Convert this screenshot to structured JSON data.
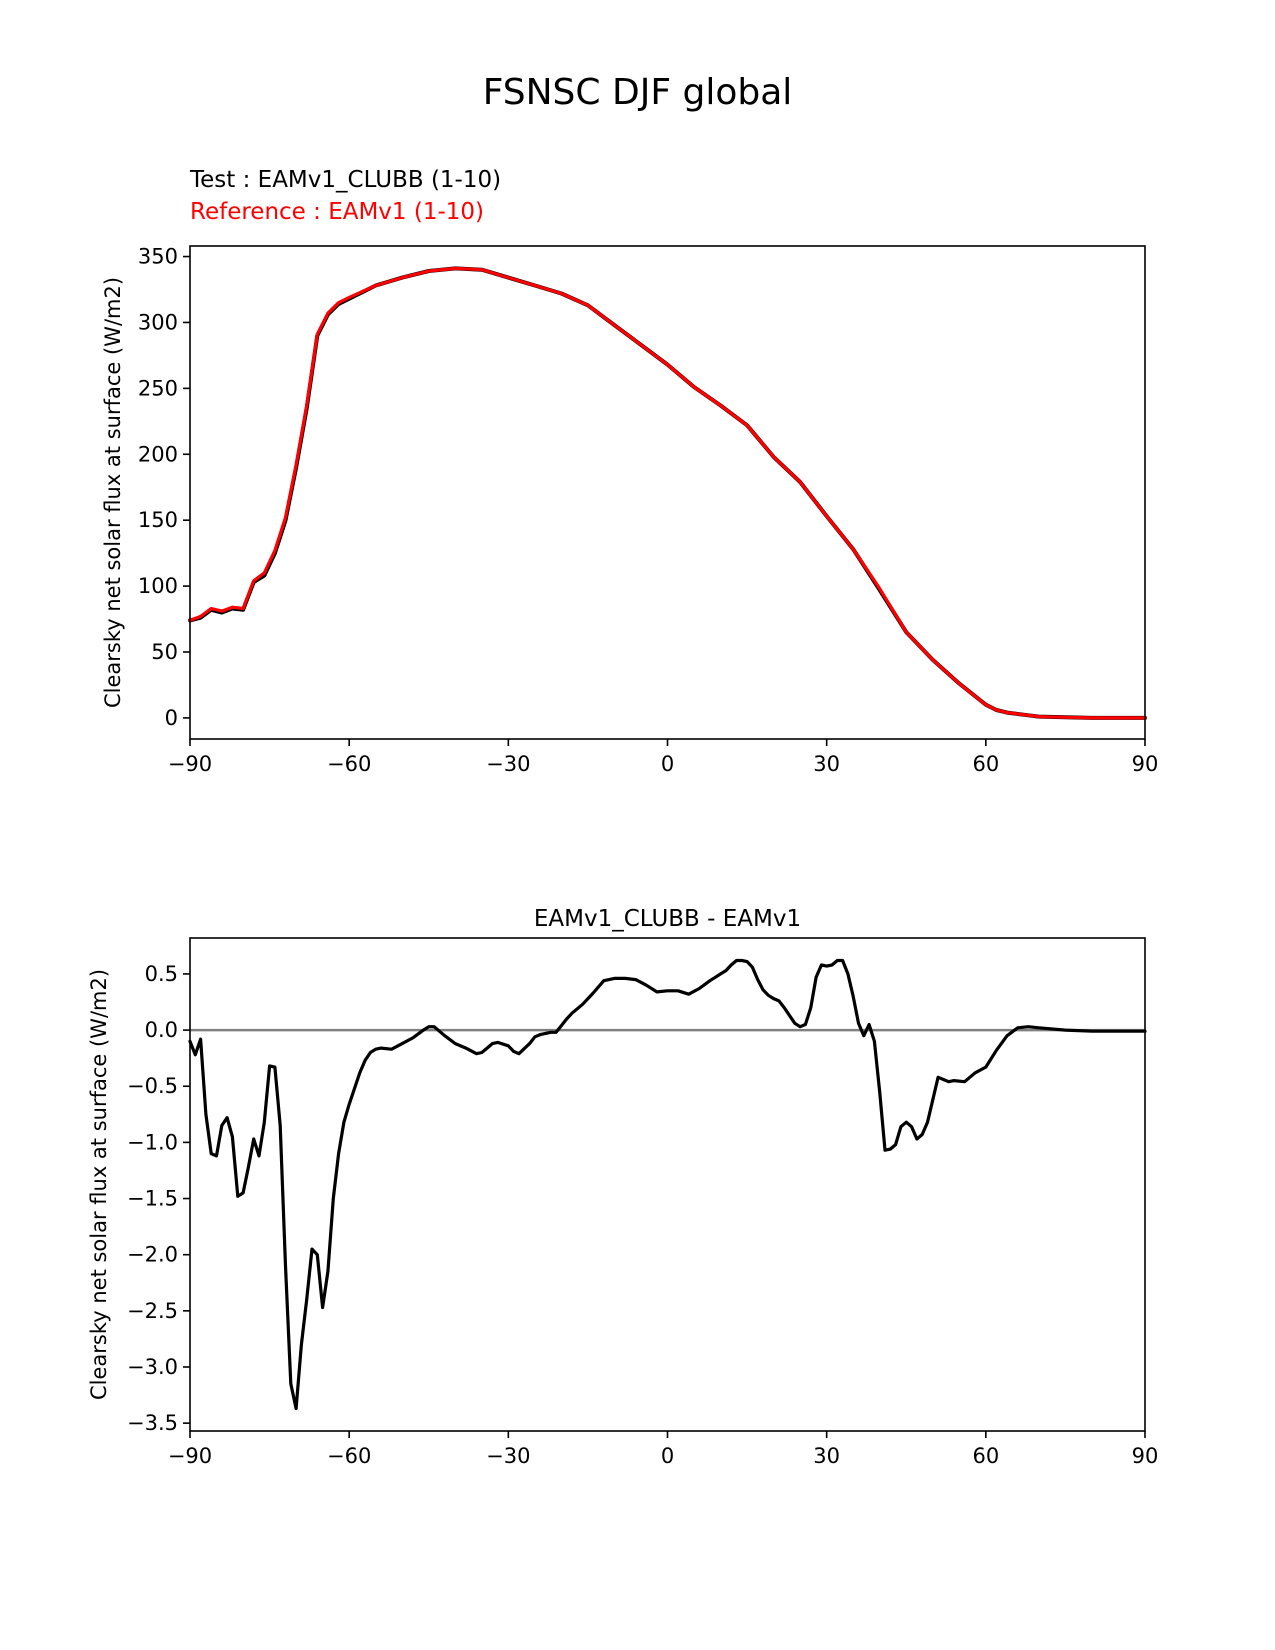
{
  "page": {
    "title": "FSNSC DJF global"
  },
  "chart_data": [
    {
      "type": "line",
      "title_test": "Test : EAMv1_CLUBB (1-10)",
      "title_reference": "Reference : EAMv1 (1-10)",
      "xlabel": "",
      "ylabel": "Clearsky net solar flux at surface (W/m2)",
      "xlim": [
        -90,
        90
      ],
      "ylim": [
        -16,
        358
      ],
      "xticks": [
        -90,
        -60,
        -30,
        0,
        30,
        60,
        90
      ],
      "xtick_labels": [
        "−90",
        "−60",
        "−30",
        "0",
        "30",
        "60",
        "90"
      ],
      "yticks": [
        0,
        50,
        100,
        150,
        200,
        250,
        300,
        350
      ],
      "ytick_labels": [
        "0",
        "50",
        "100",
        "150",
        "200",
        "250",
        "300",
        "350"
      ],
      "series": [
        {
          "name": "Test : EAMv1_CLUBB (1-10)",
          "color": "#000000",
          "x": [
            -90,
            -88,
            -86,
            -84,
            -82,
            -80,
            -78,
            -76,
            -74,
            -72,
            -70,
            -68,
            -66,
            -64,
            -62,
            -60,
            -55,
            -50,
            -45,
            -40,
            -35,
            -30,
            -25,
            -20,
            -15,
            -10,
            -5,
            0,
            5,
            10,
            15,
            20,
            25,
            30,
            35,
            40,
            45,
            50,
            55,
            60,
            62,
            64,
            66,
            68,
            70,
            75,
            80,
            85,
            90
          ],
          "y": [
            74,
            76,
            82,
            80,
            83,
            82,
            103,
            108,
            125,
            150,
            190,
            235,
            290,
            306,
            314,
            318,
            328,
            334,
            339,
            341,
            340,
            334,
            328,
            322,
            313,
            298,
            283,
            268,
            251,
            237,
            222,
            198,
            179,
            153,
            128,
            97,
            65,
            44,
            26,
            10,
            6,
            4,
            3,
            2,
            1,
            0.5,
            0,
            0,
            0
          ]
        },
        {
          "name": "Reference : EAMv1 (1-10)",
          "color": "#ff0000",
          "x": [
            -90,
            -88,
            -86,
            -84,
            -82,
            -80,
            -78,
            -76,
            -74,
            -72,
            -70,
            -68,
            -66,
            -64,
            -62,
            -60,
            -55,
            -50,
            -45,
            -40,
            -35,
            -30,
            -25,
            -20,
            -15,
            -10,
            -5,
            0,
            5,
            10,
            15,
            20,
            25,
            30,
            35,
            40,
            45,
            50,
            55,
            60,
            62,
            64,
            66,
            68,
            70,
            75,
            80,
            85,
            90
          ],
          "y": [
            74,
            77,
            83,
            81,
            84,
            83,
            104,
            110,
            127,
            152,
            192,
            237,
            291,
            307,
            315,
            319,
            328,
            334,
            339,
            341,
            340,
            334,
            328,
            322,
            313,
            298,
            283,
            268,
            251,
            237,
            222,
            198,
            179,
            153,
            128,
            98,
            65,
            44,
            26,
            10,
            6,
            4,
            3,
            2,
            1,
            0.5,
            0,
            0,
            0
          ]
        }
      ]
    },
    {
      "type": "line",
      "title": "EAMv1_CLUBB - EAMv1",
      "xlabel": "",
      "ylabel": "Clearsky net solar flux at surface (W/m2)",
      "xlim": [
        -90,
        90
      ],
      "ylim": [
        -3.57,
        0.82
      ],
      "xticks": [
        -90,
        -60,
        -30,
        0,
        30,
        60,
        90
      ],
      "xtick_labels": [
        "−90",
        "−60",
        "−30",
        "0",
        "30",
        "60",
        "90"
      ],
      "yticks": [
        0.5,
        0.0,
        -0.5,
        -1.0,
        -1.5,
        -2.0,
        -2.5,
        -3.0,
        -3.5
      ],
      "ytick_labels": [
        "0.5",
        "0.0",
        "−0.5",
        "−1.0",
        "−1.5",
        "−2.0",
        "−2.5",
        "−3.0",
        "−3.5"
      ],
      "zero_line_color": "#808080",
      "series": [
        {
          "name": "EAMv1_CLUBB - EAMv1",
          "color": "#000000",
          "x": [
            -90,
            -89,
            -88,
            -87,
            -86,
            -85,
            -84,
            -83,
            -82,
            -81,
            -80,
            -79,
            -78,
            -77,
            -76,
            -75,
            -74,
            -73,
            -72,
            -71,
            -70,
            -69,
            -68,
            -67,
            -66,
            -65,
            -64,
            -63,
            -62,
            -61,
            -60,
            -59,
            -58,
            -57,
            -56,
            -55,
            -54,
            -52,
            -50,
            -48,
            -46,
            -45,
            -44,
            -42,
            -40,
            -38,
            -36,
            -35,
            -34,
            -33,
            -32,
            -30,
            -29,
            -28,
            -26,
            -25,
            -24,
            -22,
            -21,
            -20,
            -19,
            -18,
            -16,
            -14,
            -12,
            -10,
            -8,
            -6,
            -4,
            -2,
            0,
            2,
            4,
            6,
            8,
            9,
            10,
            11,
            12,
            13,
            14,
            15,
            16,
            17,
            18,
            19,
            20,
            21,
            22,
            23,
            24,
            25,
            26,
            27,
            28,
            29,
            30,
            31,
            32,
            33,
            34,
            35,
            36,
            37,
            38,
            39,
            40,
            41,
            42,
            43,
            44,
            45,
            46,
            47,
            48,
            49,
            50,
            51,
            52,
            53,
            54,
            56,
            58,
            60,
            62,
            64,
            66,
            68,
            70,
            75,
            80,
            85,
            90
          ],
          "y": [
            -0.1,
            -0.22,
            -0.08,
            -0.75,
            -1.1,
            -1.12,
            -0.85,
            -0.78,
            -0.95,
            -1.48,
            -1.45,
            -1.22,
            -0.97,
            -1.12,
            -0.82,
            -0.32,
            -0.33,
            -0.85,
            -2.1,
            -3.15,
            -3.37,
            -2.8,
            -2.4,
            -1.95,
            -2.0,
            -2.47,
            -2.15,
            -1.5,
            -1.1,
            -0.82,
            -0.66,
            -0.52,
            -0.38,
            -0.27,
            -0.2,
            -0.17,
            -0.16,
            -0.17,
            -0.12,
            -0.07,
            0.0,
            0.03,
            0.03,
            -0.05,
            -0.12,
            -0.16,
            -0.21,
            -0.2,
            -0.16,
            -0.12,
            -0.11,
            -0.14,
            -0.19,
            -0.21,
            -0.12,
            -0.06,
            -0.04,
            -0.02,
            -0.02,
            0.04,
            0.1,
            0.15,
            0.23,
            0.33,
            0.44,
            0.46,
            0.46,
            0.45,
            0.4,
            0.34,
            0.35,
            0.35,
            0.32,
            0.37,
            0.44,
            0.47,
            0.5,
            0.53,
            0.58,
            0.62,
            0.62,
            0.61,
            0.56,
            0.45,
            0.36,
            0.31,
            0.28,
            0.26,
            0.2,
            0.13,
            0.06,
            0.03,
            0.05,
            0.2,
            0.47,
            0.58,
            0.57,
            0.58,
            0.62,
            0.62,
            0.5,
            0.3,
            0.06,
            -0.05,
            0.05,
            -0.1,
            -0.55,
            -1.07,
            -1.06,
            -1.02,
            -0.86,
            -0.82,
            -0.86,
            -0.97,
            -0.93,
            -0.82,
            -0.62,
            -0.42,
            -0.44,
            -0.46,
            -0.45,
            -0.46,
            -0.38,
            -0.33,
            -0.18,
            -0.05,
            0.02,
            0.03,
            0.02,
            0.0,
            -0.01,
            -0.01,
            -0.01
          ]
        }
      ]
    }
  ]
}
